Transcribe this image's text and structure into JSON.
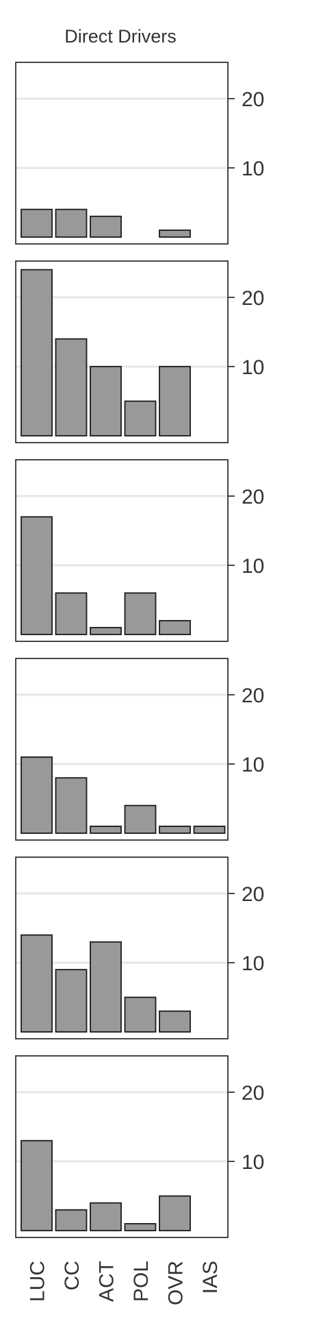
{
  "chart_data": {
    "type": "bar",
    "title": "Direct Drivers",
    "categories": [
      "LUC",
      "CC",
      "ACT",
      "POL",
      "OVR",
      "IAS"
    ],
    "ylim": [
      0,
      25
    ],
    "yticks": [
      10,
      20
    ],
    "grid": true,
    "panels": [
      {
        "values": [
          4,
          4,
          3,
          0,
          1,
          0
        ]
      },
      {
        "values": [
          24,
          14,
          10,
          5,
          10,
          0
        ]
      },
      {
        "values": [
          17,
          6,
          1,
          6,
          2,
          0
        ]
      },
      {
        "values": [
          11,
          8,
          1,
          4,
          1,
          1
        ]
      },
      {
        "values": [
          14,
          9,
          13,
          5,
          3,
          0
        ]
      },
      {
        "values": [
          13,
          3,
          4,
          1,
          5,
          0
        ]
      }
    ]
  },
  "colors": {
    "bar_fill": "#999999",
    "bar_stroke": "#1a1a1a",
    "grid": "#e6e6e6",
    "panel_border": "#333333",
    "text": "#333333"
  }
}
